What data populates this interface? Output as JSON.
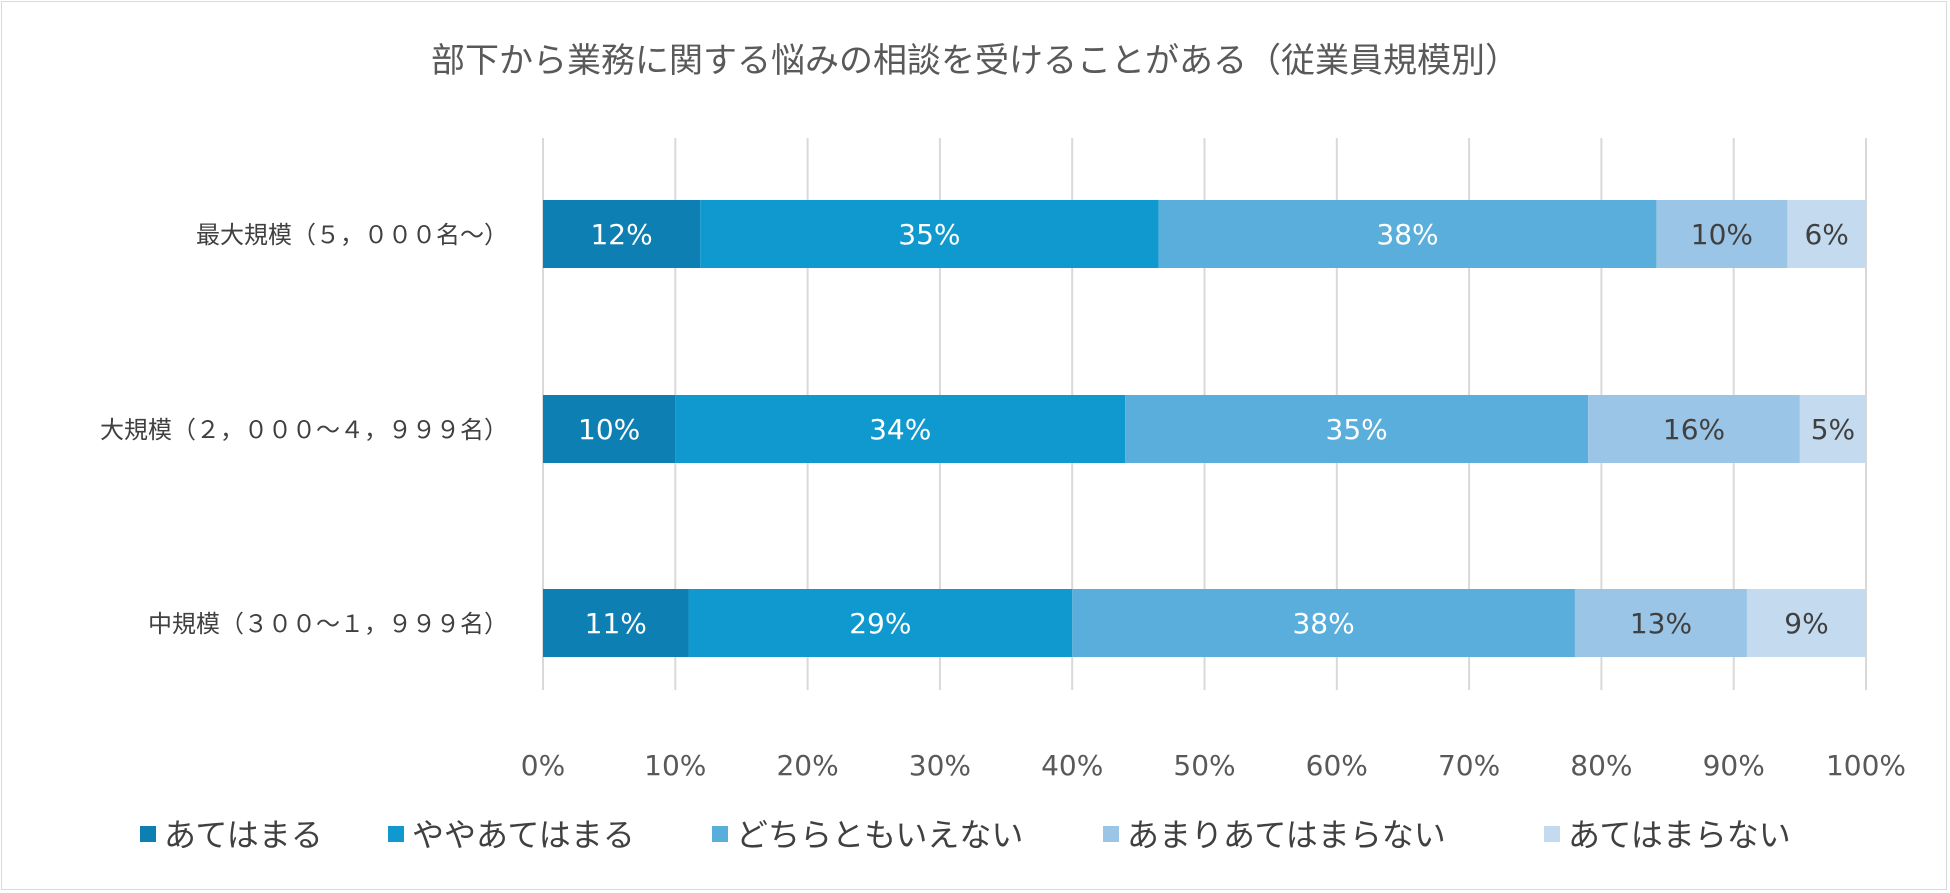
{
  "chart_data": {
    "type": "bar",
    "orientation": "horizontal",
    "stacked": "percent",
    "title": "部下から業務に関する悩みの相談を受けることがある（従業員規模別）",
    "categories": [
      "最大規模（５，０００名～）",
      "大規模（２，０００～４，９９９名）",
      "中規模（３００～１，９９９名）"
    ],
    "series": [
      {
        "name": "あてはまる",
        "values": [
          12,
          10,
          11
        ],
        "color": "#0e7fb3",
        "label_color": "#ffffff"
      },
      {
        "name": "ややあてはまる",
        "values": [
          35,
          34,
          29
        ],
        "color": "#0f99cf",
        "label_color": "#ffffff"
      },
      {
        "name": "どちらともいえない",
        "values": [
          38,
          35,
          38
        ],
        "color": "#5aaedc",
        "label_color": "#ffffff"
      },
      {
        "name": "あまりあてはまらない",
        "values": [
          10,
          16,
          13
        ],
        "color": "#9ac5e6",
        "label_color": "#404040"
      },
      {
        "name": "あてはまらない",
        "values": [
          6,
          5,
          9
        ],
        "color": "#c3daef",
        "label_color": "#404040"
      }
    ],
    "data_label_suffix": "%",
    "xlim": [
      0,
      100
    ],
    "x_ticks": [
      "0%",
      "10%",
      "20%",
      "30%",
      "40%",
      "50%",
      "60%",
      "70%",
      "80%",
      "90%",
      "100%"
    ],
    "grid": true,
    "legend_position": "bottom"
  }
}
